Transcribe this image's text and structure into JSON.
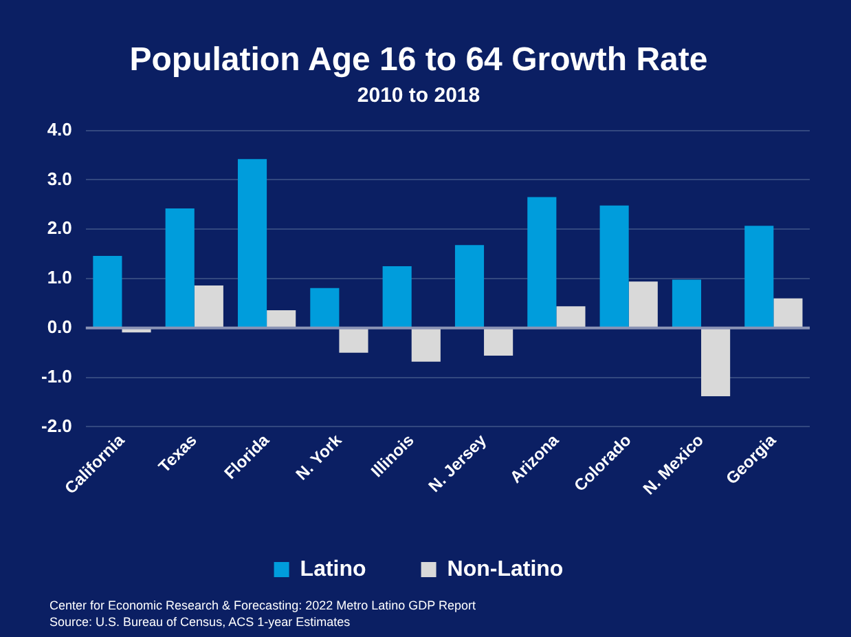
{
  "chart_data": {
    "type": "bar",
    "title": "Population Age 16 to 64 Growth Rate",
    "subtitle": "2010 to 2018",
    "categories": [
      "California",
      "Texas",
      "Florida",
      "N. York",
      "Illinois",
      "N. Jersey",
      "Arizona",
      "Colorado",
      "N. Mexico",
      "Georgia"
    ],
    "series": [
      {
        "name": "Latino",
        "color": "#009ddc",
        "values": [
          1.46,
          2.42,
          3.42,
          0.81,
          1.25,
          1.68,
          2.65,
          2.48,
          0.98,
          2.07
        ]
      },
      {
        "name": "Non-Latino",
        "color": "#d9d9d9",
        "values": [
          -0.09,
          0.86,
          0.36,
          -0.5,
          -0.68,
          -0.56,
          0.44,
          0.94,
          -1.38,
          0.6
        ]
      }
    ],
    "ylim": [
      -2,
      4
    ],
    "yticks": [
      {
        "value": -2,
        "label": "-2.0"
      },
      {
        "value": -1,
        "label": "-1.0"
      },
      {
        "value": 0,
        "label": "0.0"
      },
      {
        "value": 1,
        "label": "1.0"
      },
      {
        "value": 2,
        "label": "2.0"
      },
      {
        "value": 3,
        "label": "3.0"
      },
      {
        "value": 4,
        "label": "4.0"
      }
    ],
    "grid": "y",
    "legend": "bottom",
    "ref_lines": [
      {
        "axis": "y",
        "value": 0,
        "color": "#8a93b5"
      }
    ],
    "annotations": [
      "Center for Economic Research & Forecasting: 2022 Metro Latino GDP Report",
      "Source: U.S. Bureau of Census, ACS 1-year Estimates"
    ]
  }
}
